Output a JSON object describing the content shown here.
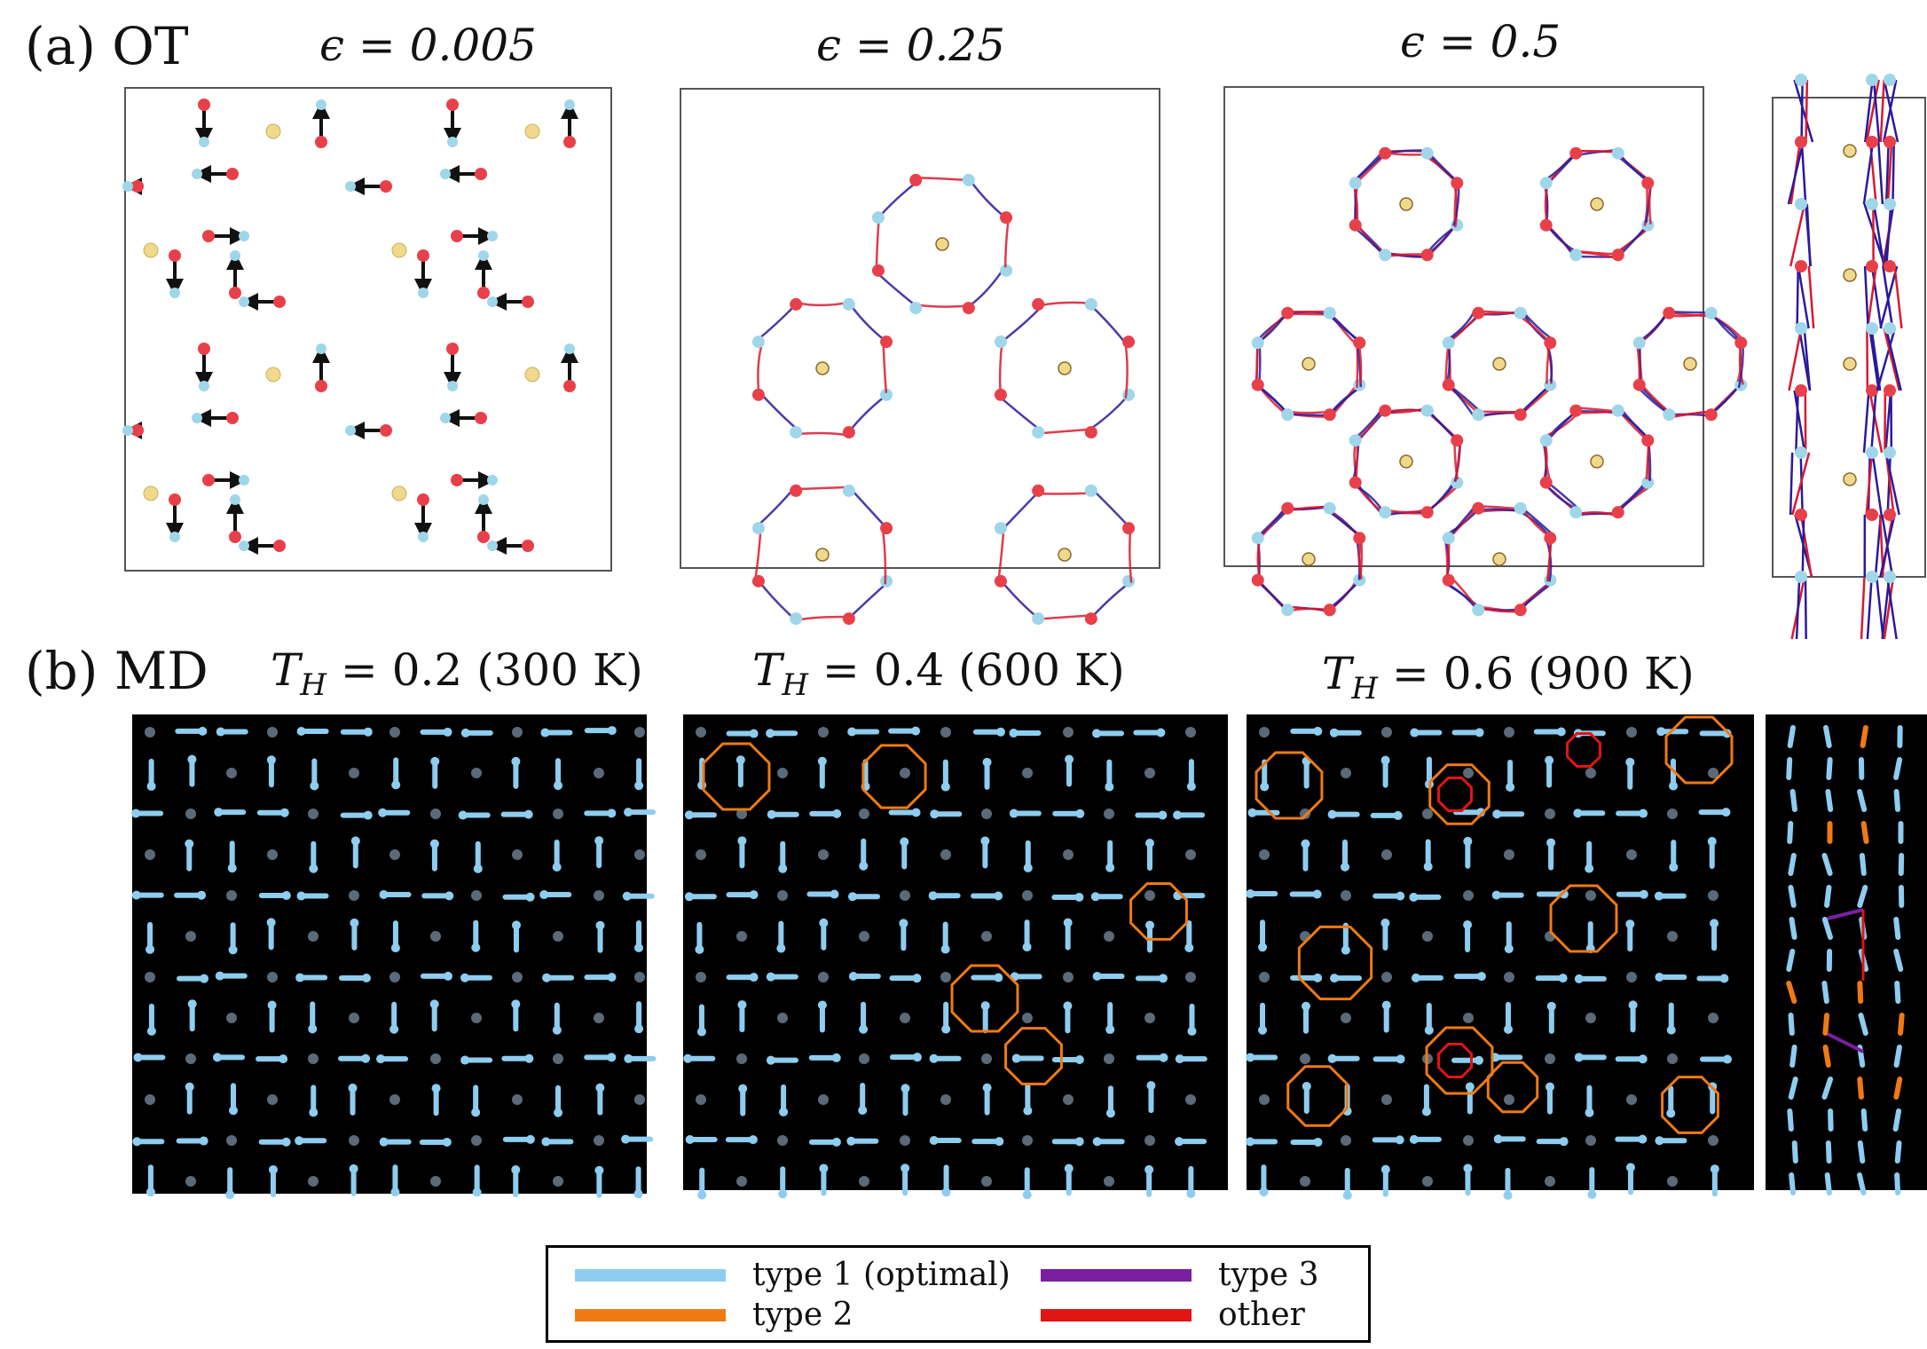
{
  "row_a": {
    "label": "(a)  OT",
    "columns": [
      {
        "title_text": "ϵ = 0.005"
      },
      {
        "title_text": "ϵ = 0.25"
      },
      {
        "title_text": "ϵ = 0.5"
      }
    ]
  },
  "row_b": {
    "label": "(b)  MD",
    "columns": [
      {
        "title_text": "T",
        "sub": "H",
        "rest": " = 0.2 (300 K)"
      },
      {
        "title_text": "T",
        "sub": "H",
        "rest": " = 0.4 (600 K)"
      },
      {
        "title_text": "T",
        "sub": "H",
        "rest": " = 0.6 (900 K)"
      }
    ]
  },
  "legend": {
    "items": [
      {
        "label": "type 1 (optimal)",
        "color": "#8ecdf0"
      },
      {
        "label": "type 3",
        "color": "#7a1fa0"
      },
      {
        "label": "type 2",
        "color": "#ef7a14"
      },
      {
        "label": "other",
        "color": "#e31414"
      }
    ]
  },
  "colors": {
    "oxygen": "#e8404a",
    "hydrogen": "#9fd6ea",
    "ion": "#f0d98a",
    "trajectory_start": "#2a1a9a",
    "trajectory_end": "#d81a30",
    "md_background": "#000000",
    "md_arrow": "#8ecdf0",
    "md_ion": "#5a6a78"
  }
}
